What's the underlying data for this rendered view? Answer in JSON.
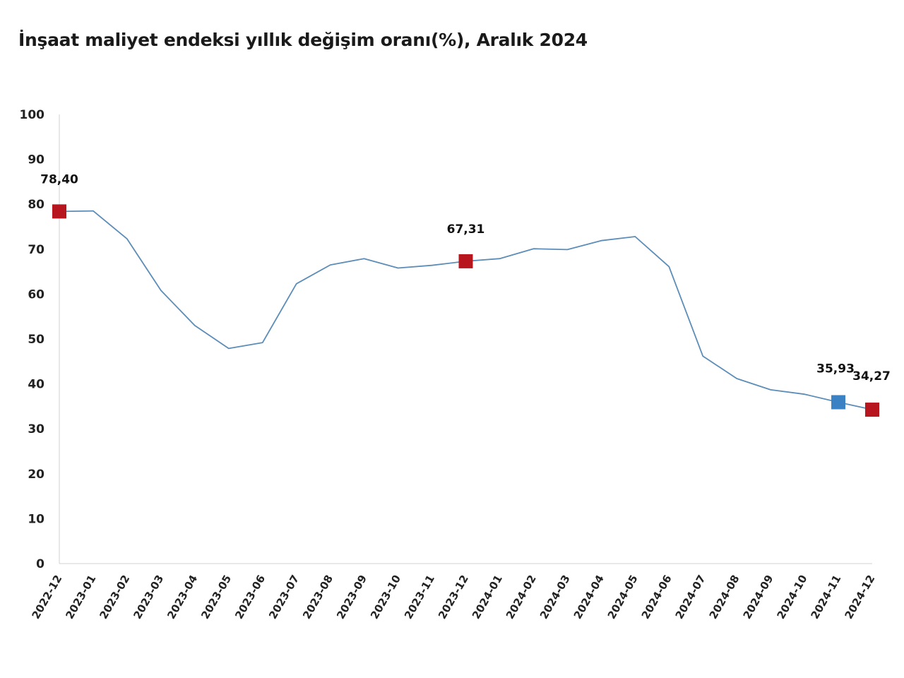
{
  "title": "İnşaat maliyet endeksi yıllık değişim oranı(%), Aralık 2024",
  "chart_data": {
    "type": "line",
    "title": "İnşaat maliyet endeksi yıllık değişim oranı(%), Aralık 2024",
    "xlabel": "",
    "ylabel": "",
    "ylim": [
      0,
      100
    ],
    "y_ticks": [
      "0",
      "10",
      "20",
      "30",
      "40",
      "50",
      "60",
      "70",
      "80",
      "90",
      "100"
    ],
    "grid": false,
    "categories": [
      "2022-12",
      "2023-01",
      "2023-02",
      "2023-03",
      "2023-04",
      "2023-05",
      "2023-06",
      "2023-07",
      "2023-08",
      "2023-09",
      "2023-10",
      "2023-11",
      "2023-12",
      "2024-01",
      "2024-02",
      "2024-03",
      "2024-04",
      "2024-05",
      "2024-06",
      "2024-07",
      "2024-08",
      "2024-09",
      "2024-10",
      "2024-11",
      "2024-12"
    ],
    "series": [
      {
        "values": [
          78.4,
          78.5,
          72.3,
          60.8,
          53.0,
          47.9,
          49.2,
          62.3,
          66.5,
          67.9,
          65.8,
          66.4,
          67.31,
          67.9,
          70.1,
          69.9,
          71.9,
          72.8,
          66.1,
          46.2,
          41.2,
          38.7,
          37.7,
          35.93,
          34.27
        ],
        "color": "#5b8db8"
      }
    ],
    "markers": [
      {
        "index": 0,
        "label": "78,40",
        "color": "#b8161e"
      },
      {
        "index": 12,
        "label": "67,31",
        "color": "#b8161e"
      },
      {
        "index": 23,
        "label": "35,93",
        "color": "#3b82c4"
      },
      {
        "index": 24,
        "label": "34,27",
        "color": "#b8161e"
      }
    ]
  }
}
